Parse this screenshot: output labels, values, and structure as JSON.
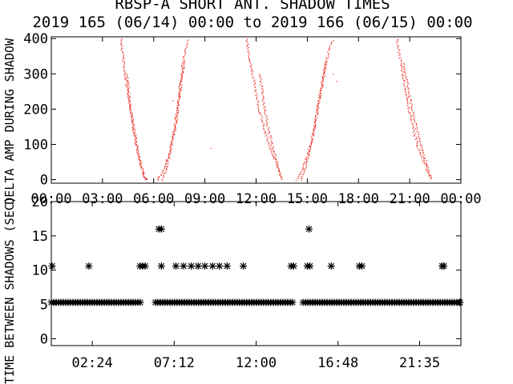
{
  "title": {
    "line1": "RBSP-A SHORT ANT. SHADOW TIMES",
    "line2": "2019 165 (06/14) 00:00 to 2019 166 (06/15) 00:00"
  },
  "colors": {
    "points": "#e8291c",
    "axes": "#000000",
    "background": "#ffffff"
  },
  "chart_data": [
    {
      "type": "scatter",
      "ylabel": "DELTA AMP DURING SHADOW",
      "xlim": [
        0,
        24
      ],
      "ylim": [
        -10,
        405
      ],
      "x_tick_labels": [
        "00:00",
        "03:00",
        "06:00",
        "09:00",
        "12:00",
        "15:00",
        "18:00",
        "21:00",
        "00:00"
      ],
      "x_tick_values": [
        0,
        3,
        6,
        9,
        12,
        15,
        18,
        21,
        24
      ],
      "y_ticks": [
        0,
        100,
        200,
        300,
        400
      ],
      "marker": "dot",
      "color": "#e8291c",
      "series": [
        {
          "segments": [
            {
              "x": [
                4.05,
                4.3,
                4.6,
                4.9,
                5.15,
                5.35,
                5.5,
                5.6
              ],
              "y": [
                400,
                300,
                200,
                110,
                55,
                20,
                5,
                0
              ]
            },
            {
              "x": [
                4.4,
                4.65,
                4.95,
                5.25,
                5.45
              ],
              "y": [
                300,
                200,
                110,
                40,
                5
              ]
            },
            {
              "x": [
                6.2,
                6.45,
                6.75,
                7.05,
                7.35,
                7.6,
                7.8,
                8.0
              ],
              "y": [
                0,
                15,
                55,
                110,
                200,
                300,
                370,
                400
              ]
            },
            {
              "x": [
                6.45,
                6.7,
                7.0,
                7.3,
                7.55,
                7.75
              ],
              "y": [
                0,
                30,
                90,
                170,
                260,
                340
              ]
            },
            {
              "x": [
                11.4,
                11.7,
                12.1,
                12.6,
                13.05,
                13.35,
                13.5
              ],
              "y": [
                400,
                320,
                210,
                120,
                60,
                20,
                0
              ]
            },
            {
              "x": [
                12.2,
                12.45,
                12.8,
                13.2,
                13.45
              ],
              "y": [
                300,
                210,
                120,
                50,
                5
              ]
            },
            {
              "x": [
                14.35,
                14.65,
                15.0,
                15.35,
                15.65,
                15.95,
                16.25,
                16.5
              ],
              "y": [
                0,
                25,
                70,
                140,
                230,
                310,
                370,
                400
              ]
            },
            {
              "x": [
                14.6,
                14.9,
                15.2,
                15.55,
                15.85,
                16.1
              ],
              "y": [
                0,
                40,
                100,
                190,
                270,
                340
              ]
            },
            {
              "x": [
                20.25,
                20.5,
                20.8,
                21.15,
                21.5,
                21.85,
                22.1,
                22.3
              ],
              "y": [
                400,
                320,
                230,
                150,
                90,
                45,
                15,
                0
              ]
            },
            {
              "x": [
                20.6,
                20.95,
                21.3,
                21.65,
                21.95,
                22.2
              ],
              "y": [
                330,
                240,
                160,
                100,
                50,
                10
              ]
            }
          ],
          "isolated": [
            {
              "x": 7.1,
              "y": 225
            },
            {
              "x": 9.35,
              "y": 90
            },
            {
              "x": 16.5,
              "y": 300
            },
            {
              "x": 16.7,
              "y": 280
            }
          ]
        }
      ]
    },
    {
      "type": "scatter",
      "ylabel": "TIME BETWEEN SHADOWS (SEC)",
      "xlim": [
        0,
        24
      ],
      "ylim": [
        -1,
        20
      ],
      "x_tick_labels": [
        "02:24",
        "07:12",
        "12:00",
        "16:48",
        "21:35"
      ],
      "x_tick_values": [
        2.4,
        7.2,
        12.0,
        16.8,
        21.58
      ],
      "y_ticks": [
        0,
        5,
        10,
        15,
        20
      ],
      "marker": "asterisk",
      "color": "#000000",
      "series": [
        {
          "baseline": {
            "y": 5.3,
            "x_ranges": [
              [
                0,
                5.35
              ],
              [
                6.1,
                14.25
              ],
              [
                14.75,
                24
              ]
            ]
          },
          "points": [
            {
              "x": 0.05,
              "y": 10.6
            },
            {
              "x": 2.2,
              "y": 10.6
            },
            {
              "x": 5.2,
              "y": 10.6
            },
            {
              "x": 5.35,
              "y": 10.6
            },
            {
              "x": 5.5,
              "y": 10.6
            },
            {
              "x": 6.3,
              "y": 16.0
            },
            {
              "x": 6.45,
              "y": 16.0
            },
            {
              "x": 6.45,
              "y": 10.6
            },
            {
              "x": 7.3,
              "y": 10.6
            },
            {
              "x": 7.75,
              "y": 10.6
            },
            {
              "x": 8.2,
              "y": 10.6
            },
            {
              "x": 8.6,
              "y": 10.6
            },
            {
              "x": 9.0,
              "y": 10.6
            },
            {
              "x": 9.45,
              "y": 10.6
            },
            {
              "x": 9.85,
              "y": 10.6
            },
            {
              "x": 10.3,
              "y": 10.6
            },
            {
              "x": 11.25,
              "y": 10.6
            },
            {
              "x": 14.05,
              "y": 10.6
            },
            {
              "x": 14.2,
              "y": 10.6
            },
            {
              "x": 15.0,
              "y": 10.6
            },
            {
              "x": 15.15,
              "y": 10.6
            },
            {
              "x": 15.1,
              "y": 16.0
            },
            {
              "x": 16.4,
              "y": 10.6
            },
            {
              "x": 18.05,
              "y": 10.6
            },
            {
              "x": 18.2,
              "y": 10.6
            },
            {
              "x": 22.9,
              "y": 10.6
            },
            {
              "x": 23.0,
              "y": 10.6
            },
            {
              "x": 23.95,
              "y": 5.3
            }
          ]
        }
      ]
    }
  ]
}
